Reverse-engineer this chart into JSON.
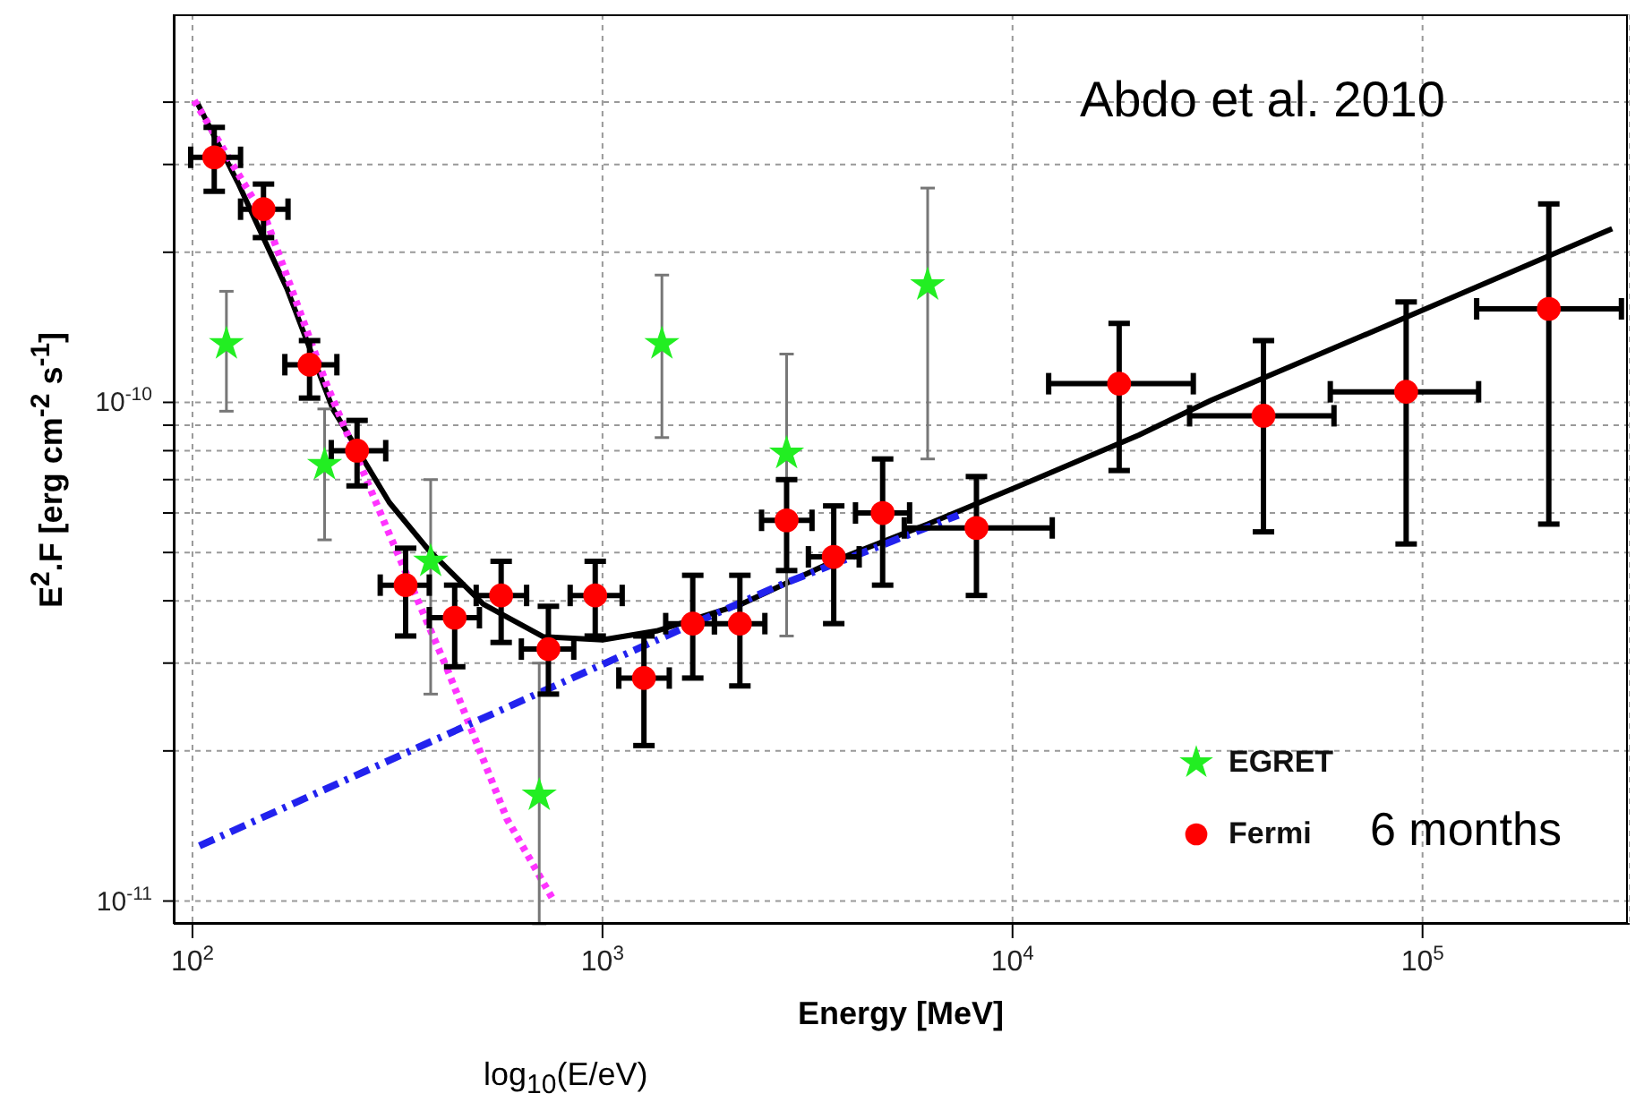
{
  "chart_data": {
    "type": "scatter",
    "xlabel": "Energy [MeV]",
    "ylabel": "E$^{2}$.F [erg cm$^{-2}$ s$^{-1}$]",
    "annotations": [
      "Abdo et al. 2010",
      "6 months",
      "log$_{10}$(E/eV)"
    ],
    "log": "xy",
    "grid": true,
    "legend": "bottom right",
    "xlim": [
      90,
      320000
    ],
    "ylim": [
      9e-12,
      6e-10
    ],
    "xticks": [
      {
        "value": 100,
        "label": "10$^{2}$"
      },
      {
        "value": 1000,
        "label": "10$^{3}$"
      },
      {
        "value": 10000,
        "label": "10$^{4}$"
      },
      {
        "value": 100000,
        "label": "10$^{5}$"
      }
    ],
    "yticks": [
      {
        "value": 1e-11,
        "label": "10$^{-11}$"
      },
      {
        "value": 2e-11,
        "label": null
      },
      {
        "value": 3e-11,
        "label": null
      },
      {
        "value": 4e-11,
        "label": null
      },
      {
        "value": 5e-11,
        "label": null
      },
      {
        "value": 6e-11,
        "label": null
      },
      {
        "value": 7e-11,
        "label": null
      },
      {
        "value": 8e-11,
        "label": null
      },
      {
        "value": 9e-11,
        "label": null
      },
      {
        "value": 1e-10,
        "label": "10$^{-10}$"
      },
      {
        "value": 2e-10,
        "label": null
      },
      {
        "value": 3e-10,
        "label": null
      },
      {
        "value": 4e-10,
        "label": null
      }
    ],
    "series": [
      {
        "type": "line",
        "color": "#000000",
        "line_style": "solid",
        "marker": "none",
        "x": [
          103,
          129,
          170,
          220,
          302,
          378,
          512,
          716,
          1000,
          1355,
          2183,
          3741,
          6209,
          11070,
          20330,
          30550,
          84140,
          290000
        ],
        "values": [
          3.97e-10,
          2.76e-10,
          1.69e-10,
          9.7e-11,
          6.3e-11,
          5.04e-11,
          3.94e-11,
          3.39e-11,
          3.34e-11,
          3.48e-11,
          3.94e-11,
          4.84e-11,
          5.7e-11,
          6.95e-11,
          8.6e-11,
          1.01e-10,
          1.44e-10,
          2.23e-10
        ]
      },
      {
        "type": "line",
        "color": "#ff33ff",
        "line_style": "dotted",
        "marker": "none",
        "x": [
          101,
          152,
          212,
          296,
          418,
          585,
          761
        ],
        "values": [
          4.03e-10,
          2.3e-10,
          1.09e-10,
          5.66e-11,
          2.92e-11,
          1.46e-11,
          1e-11
        ]
      },
      {
        "type": "line",
        "color": "#2222ee",
        "line_style": "dashed",
        "marker": "none",
        "x": [
          104,
          971,
          2673,
          7379
        ],
        "values": [
          1.29e-11,
          2.95e-11,
          4.28e-11,
          5.94e-11
        ]
      },
      {
        "name": "EGRET",
        "color": "#22ee22",
        "marker": "star",
        "x": [
          121,
          210,
          381,
          701,
          1396,
          2812,
          6209
        ],
        "values": [
          1.31e-10,
          7.5e-11,
          4.8e-11,
          1.63e-11,
          1.31e-10,
          7.9e-11,
          1.72e-10
        ],
        "errors": [
          [
            9.6e-11,
            1.67e-10
          ],
          [
            5.3e-11,
            9.7e-11
          ],
          [
            2.6e-11,
            7e-11
          ],
          [
            9e-12,
            3e-11
          ],
          [
            8.5e-11,
            1.8e-10
          ],
          [
            3.4e-11,
            1.25e-10
          ],
          [
            7.7e-11,
            2.69e-10
          ]
        ]
      },
      {
        "name": "Fermi",
        "color": "#ff0000",
        "marker": "circle",
        "x": [
          113,
          149,
          193,
          252,
          331,
          436,
          566,
          738,
          960,
          1262,
          1660,
          2163,
          2812,
          3664,
          4822,
          8166,
          18200,
          40930,
          91200,
          203200
        ],
        "values": [
          3.1e-10,
          2.44e-10,
          1.19e-10,
          8e-11,
          4.3e-11,
          3.7e-11,
          4.1e-11,
          3.2e-11,
          4.1e-11,
          2.8e-11,
          3.6e-11,
          3.6e-11,
          5.8e-11,
          4.9e-11,
          6e-11,
          5.6e-11,
          1.09e-10,
          9.4e-11,
          1.05e-10,
          1.54e-10
        ],
        "errors": [
          [
            2.65e-10,
            3.56e-10
          ],
          [
            2.14e-10,
            2.74e-10
          ],
          [
            1.02e-10,
            1.33e-10
          ],
          [
            6.8e-11,
            9.2e-11
          ],
          [
            3.4e-11,
            5.1e-11
          ],
          [
            2.95e-11,
            4.3e-11
          ],
          [
            3.3e-11,
            4.8e-11
          ],
          [
            2.6e-11,
            3.9e-11
          ],
          [
            3.4e-11,
            4.8e-11
          ],
          [
            2.05e-11,
            3.4e-11
          ],
          [
            2.8e-11,
            4.5e-11
          ],
          [
            2.7e-11,
            4.5e-11
          ],
          [
            4.6e-11,
            7e-11
          ],
          [
            3.6e-11,
            6.2e-11
          ],
          [
            4.3e-11,
            7.7e-11
          ],
          [
            4.1e-11,
            7.1e-11
          ],
          [
            7.3e-11,
            1.44e-10
          ],
          [
            5.5e-11,
            1.33e-10
          ],
          [
            5.2e-11,
            1.59e-10
          ],
          [
            5.7e-11,
            2.5e-10
          ]
        ],
        "xerrors": [
          [
            99,
            131
          ],
          [
            131,
            171
          ],
          [
            168,
            225
          ],
          [
            218,
            296
          ],
          [
            287,
            378
          ],
          [
            378,
            501
          ],
          [
            492,
            653
          ],
          [
            634,
            851
          ],
          [
            834,
            1117
          ],
          [
            1096,
            1455
          ],
          [
            1426,
            1875
          ],
          [
            1875,
            2489
          ],
          [
            2443,
            3243
          ],
          [
            3178,
            4227
          ],
          [
            4140,
            5610
          ],
          [
            5445,
            12500
          ],
          [
            12250,
            27600
          ],
          [
            27030,
            60810
          ],
          [
            59560,
            137000
          ],
          [
            135500,
            305500
          ]
        ]
      }
    ]
  }
}
